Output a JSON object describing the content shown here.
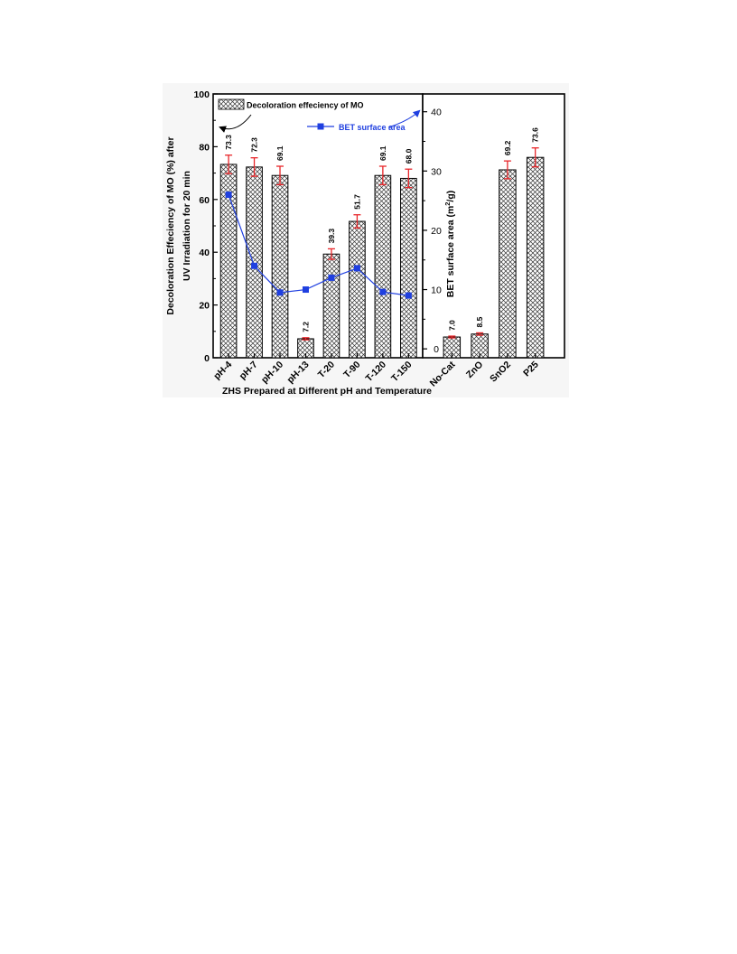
{
  "chart_data": {
    "type": "bar",
    "xlabel": "ZHS Prepared at Different  pH and Temperature",
    "left_panel": {
      "ylabel_line1": "Decoloration Effeciency of MO (%) after",
      "ylabel_line2": "UV Irradiation for 20 min",
      "ylim": [
        0,
        100
      ],
      "yticks": [
        "0",
        "20",
        "40",
        "60",
        "80",
        "100"
      ],
      "categories": [
        "pH-4",
        "pH-7",
        "pH-10",
        "pH-13",
        "T-20",
        "T-90",
        "T-120",
        "T-150"
      ],
      "values": [
        73.3,
        72.3,
        69.1,
        7.2,
        39.3,
        51.7,
        69.1,
        68.0
      ],
      "value_labels": [
        "73.3",
        "72.3",
        "69.1",
        "7.2",
        "39.3",
        "51.7",
        "69.1",
        "68.0"
      ],
      "errors": [
        3.5,
        3.5,
        3.5,
        0.4,
        2.0,
        2.5,
        3.5,
        3.5
      ],
      "bet_series": {
        "name": "BET surface area",
        "values": [
          26.0,
          14.0,
          9.5,
          10.0,
          12.0,
          13.6,
          9.6,
          9.0
        ]
      }
    },
    "right_panel": {
      "ylabel": "BET surface area (m",
      "ylabel_sup": "2",
      "ylabel_end": "/g)",
      "ylim": [
        -1.5,
        43
      ],
      "yticks": [
        "0",
        "10",
        "20",
        "30",
        "40"
      ],
      "ytick_values": [
        0,
        10,
        20,
        30,
        40
      ],
      "categories": [
        "No-Cat",
        "ZnO",
        "SnO2",
        "P25"
      ],
      "values": [
        2.0,
        2.5,
        30.2,
        32.3
      ],
      "value_labels": [
        "7.0",
        "8.5",
        "69.2",
        "73.6"
      ],
      "errors": [
        0.15,
        0.2,
        1.5,
        1.6
      ]
    },
    "legend": {
      "bar_label": "Decoloration effeciency of MO",
      "line_label": "BET surface area"
    },
    "colors": {
      "bar_fill": "#ffffff",
      "hatch": "#333333",
      "error_bar": "#e8262a",
      "series_line": "#1f3fe0",
      "background": "#f6f6f6"
    }
  }
}
